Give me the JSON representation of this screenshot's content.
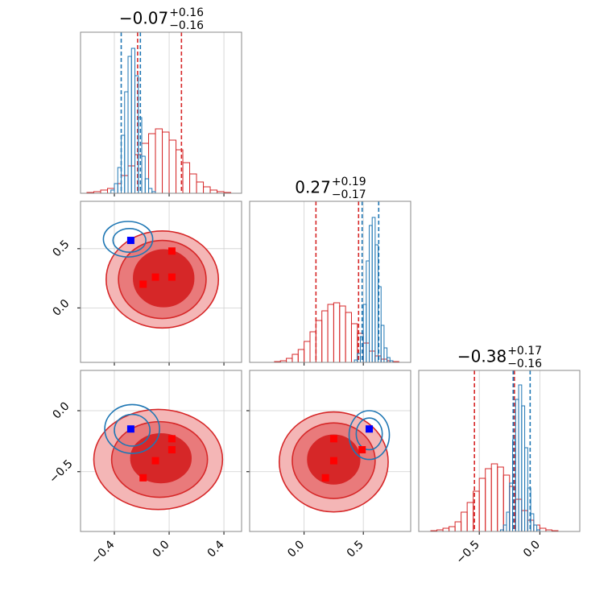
{
  "chart_data": [
    {
      "type": "histogram",
      "title": {
        "value": "−0.07",
        "upper": "+0.16",
        "lower": "−0.16"
      },
      "xlim": [
        -0.647,
        0.529
      ],
      "xticks": [
        {
          "value": -0.4,
          "label": "−0.4"
        },
        {
          "value": 0,
          "label": "0.0"
        },
        {
          "value": 0.4,
          "label": "0.4"
        }
      ],
      "ylim": [
        0,
        100
      ],
      "grid": true,
      "series": [
        {
          "color": "#d62728",
          "bins": [
            -0.65,
            -0.6,
            -0.55,
            -0.5,
            -0.45,
            -0.4,
            -0.35,
            -0.3,
            -0.25,
            -0.2,
            -0.15,
            -0.1,
            -0.05,
            0,
            0.05,
            0.1,
            0.15,
            0.2,
            0.25,
            0.3,
            0.35,
            0.4,
            0.45,
            0.5
          ],
          "values": [
            0,
            0.5,
            1,
            2,
            3,
            6,
            11,
            17,
            24,
            31,
            37,
            40,
            38,
            33,
            27,
            19,
            12,
            7,
            4,
            2,
            1,
            0.5,
            0
          ],
          "quantiles": [
            -0.23,
            0.09
          ]
        },
        {
          "color": "#1f77b4",
          "bins": [
            -0.45,
            -0.425,
            -0.4,
            -0.375,
            -0.35,
            -0.325,
            -0.3,
            -0.275,
            -0.25,
            -0.225,
            -0.2,
            -0.175,
            -0.15,
            -0.125,
            -0.1,
            -0.075,
            -0.05
          ],
          "values": [
            0,
            2,
            6,
            16,
            36,
            63,
            85,
            90,
            73,
            47,
            23,
            9,
            3,
            1,
            0,
            0
          ],
          "quantiles": [
            -0.35,
            -0.21
          ]
        }
      ]
    },
    {
      "type": "contour",
      "xlim": [
        -0.647,
        0.529
      ],
      "xticks": [
        {
          "value": -0.4,
          "label": "−0.4"
        },
        {
          "value": 0,
          "label": "0.0"
        },
        {
          "value": 0.4,
          "label": "0.4"
        }
      ],
      "ylim": [
        -0.46,
        0.9
      ],
      "yticks": [
        {
          "value": 0,
          "label": "0.0"
        },
        {
          "value": 0.5,
          "label": "0.5"
        }
      ],
      "grid": true,
      "series": [
        {
          "color": "#d62728",
          "level_fills": [
            "#f4b6b6",
            "#e97a7b",
            "#d62728"
          ],
          "levels": [
            {
              "cx": -0.05,
              "cy": 0.24,
              "rx": 0.41,
              "ry": 0.41
            },
            {
              "cx": -0.05,
              "cy": 0.24,
              "rx": 0.32,
              "ry": 0.33
            },
            {
              "cx": -0.04,
              "cy": 0.25,
              "rx": 0.22,
              "ry": 0.24
            }
          ]
        },
        {
          "color": "#1f77b4",
          "levels": [
            {
              "cx": -0.3,
              "cy": 0.58,
              "rx": 0.18,
              "ry": 0.15
            },
            {
              "cx": -0.29,
              "cy": 0.57,
              "rx": 0.12,
              "ry": 0.1
            }
          ]
        }
      ],
      "points": [
        {
          "color": "#ff0000",
          "x": [
            -0.19,
            -0.1,
            0.02,
            0.02
          ],
          "y": [
            0.2,
            0.26,
            0.26,
            0.48
          ]
        },
        {
          "color": "#0000ff",
          "x": [
            -0.28
          ],
          "y": [
            0.57
          ]
        }
      ]
    },
    {
      "type": "histogram",
      "title": {
        "value": "0.27",
        "upper": "+0.19",
        "lower": "−0.17"
      },
      "xlim": [
        -0.46,
        0.9
      ],
      "xticks": [
        {
          "value": 0,
          "label": "0.0"
        },
        {
          "value": 0.5,
          "label": "0.5"
        }
      ],
      "ylim": [
        0,
        100
      ],
      "grid": true,
      "series": [
        {
          "color": "#d62728",
          "bins": [
            -0.4,
            -0.35,
            -0.3,
            -0.25,
            -0.2,
            -0.15,
            -0.1,
            -0.05,
            0,
            0.05,
            0.1,
            0.15,
            0.2,
            0.25,
            0.3,
            0.35,
            0.4,
            0.45,
            0.5,
            0.55,
            0.6,
            0.65,
            0.7,
            0.75,
            0.8,
            0.85,
            0.9
          ],
          "values": [
            0,
            0,
            0,
            0.5,
            1,
            2.5,
            5,
            8,
            13,
            19,
            26,
            32,
            36,
            37,
            35,
            31,
            24,
            18,
            12,
            7,
            4,
            2,
            1,
            0.5,
            0,
            0
          ],
          "quantiles": [
            0.1,
            0.46
          ]
        },
        {
          "color": "#1f77b4",
          "bins": [
            0.35,
            0.375,
            0.4,
            0.425,
            0.45,
            0.475,
            0.5,
            0.525,
            0.55,
            0.575,
            0.6,
            0.625,
            0.65,
            0.675,
            0.7,
            0.725,
            0.75,
            0.775,
            0.8,
            0.825,
            0.85
          ],
          "values": [
            0,
            0,
            0,
            1.5,
            5.5,
            16,
            36,
            63,
            85,
            90,
            73,
            47,
            23,
            9,
            3,
            1,
            0,
            0,
            0,
            0
          ],
          "quantiles": [
            0.49,
            0.63
          ]
        }
      ]
    },
    {
      "type": "contour",
      "xlim": [
        -0.647,
        0.529
      ],
      "xticks": [
        {
          "value": -0.4,
          "label": "−0.4"
        },
        {
          "value": 0,
          "label": "0.0"
        },
        {
          "value": 0.4,
          "label": "0.4"
        }
      ],
      "ylim": [
        -0.99,
        0.33
      ],
      "yticks": [
        {
          "value": -0.5,
          "label": "−0.5"
        },
        {
          "value": 0,
          "label": "0.0"
        }
      ],
      "grid": true,
      "series": [
        {
          "color": "#d62728",
          "level_fills": [
            "#f4b6b6",
            "#e97a7b",
            "#d62728"
          ],
          "levels": [
            {
              "cx": -0.08,
              "cy": -0.4,
              "rx": 0.47,
              "ry": 0.41
            },
            {
              "cx": -0.07,
              "cy": -0.4,
              "rx": 0.35,
              "ry": 0.31
            },
            {
              "cx": -0.06,
              "cy": -0.39,
              "rx": 0.22,
              "ry": 0.2
            }
          ]
        },
        {
          "color": "#1f77b4",
          "levels": [
            {
              "cx": -0.27,
              "cy": -0.15,
              "rx": 0.2,
              "ry": 0.2
            },
            {
              "cx": -0.27,
              "cy": -0.16,
              "rx": 0.13,
              "ry": 0.13
            }
          ]
        }
      ],
      "points": [
        {
          "color": "#ff0000",
          "x": [
            -0.19,
            -0.1,
            0.02,
            0.02
          ],
          "y": [
            -0.55,
            -0.41,
            -0.23,
            -0.32
          ]
        },
        {
          "color": "#0000ff",
          "x": [
            -0.28
          ],
          "y": [
            -0.15
          ]
        }
      ]
    },
    {
      "type": "contour",
      "xlim": [
        -0.46,
        0.9
      ],
      "xticks": [
        {
          "value": 0,
          "label": "0.0"
        },
        {
          "value": 0.5,
          "label": "0.5"
        }
      ],
      "ylim": [
        -0.99,
        0.33
      ],
      "yticks": [
        {
          "value": -0.5,
          "label": "−0.5"
        },
        {
          "value": 0,
          "label": "0.0"
        }
      ],
      "grid": true,
      "series": [
        {
          "color": "#d62728",
          "level_fills": [
            "#f4b6b6",
            "#e97a7b",
            "#d62728"
          ],
          "levels": [
            {
              "cx": 0.25,
              "cy": -0.42,
              "rx": 0.46,
              "ry": 0.41
            },
            {
              "cx": 0.25,
              "cy": -0.41,
              "rx": 0.35,
              "ry": 0.31
            },
            {
              "cx": 0.25,
              "cy": -0.4,
              "rx": 0.22,
              "ry": 0.2
            }
          ]
        },
        {
          "color": "#1f77b4",
          "levels": [
            {
              "cx": 0.55,
              "cy": -0.2,
              "rx": 0.17,
              "ry": 0.2
            },
            {
              "cx": 0.55,
              "cy": -0.19,
              "rx": 0.11,
              "ry": 0.13
            }
          ]
        }
      ],
      "points": [
        {
          "color": "#ff0000",
          "x": [
            0.18,
            0.25,
            0.25,
            0.49
          ],
          "y": [
            -0.55,
            -0.41,
            -0.23,
            -0.32
          ]
        },
        {
          "color": "#0000ff",
          "x": [
            0.55
          ],
          "y": [
            -0.15
          ]
        }
      ]
    },
    {
      "type": "histogram",
      "title": {
        "value": "−0.38",
        "upper": "+0.17",
        "lower": "−0.16"
      },
      "xlim": [
        -1.0,
        0.33
      ],
      "xticks": [
        {
          "value": -0.5,
          "label": "−0.5"
        },
        {
          "value": 0,
          "label": "0.0"
        }
      ],
      "ylim": [
        0,
        100
      ],
      "grid": true,
      "series": [
        {
          "color": "#d62728",
          "bins": [
            -0.95,
            -0.9,
            -0.85,
            -0.8,
            -0.75,
            -0.7,
            -0.65,
            -0.6,
            -0.55,
            -0.5,
            -0.45,
            -0.4,
            -0.35,
            -0.3,
            -0.25,
            -0.2,
            -0.15,
            -0.1,
            -0.05,
            0,
            0.05,
            0.1,
            0.15,
            0.2
          ],
          "values": [
            0,
            0.5,
            1,
            2,
            3,
            6,
            12,
            18,
            25,
            33,
            39,
            42,
            40,
            35,
            28,
            20,
            13,
            7,
            4,
            2,
            1,
            0.5,
            0
          ],
          "quantiles": [
            -0.54,
            -0.21
          ]
        },
        {
          "color": "#1f77b4",
          "bins": [
            -0.35,
            -0.325,
            -0.3,
            -0.275,
            -0.25,
            -0.225,
            -0.2,
            -0.175,
            -0.15,
            -0.125,
            -0.1,
            -0.075,
            -0.05,
            -0.025,
            0,
            0.025,
            0.05,
            0.075,
            0.1,
            0.125,
            0.15
          ],
          "values": [
            0,
            1,
            4,
            12,
            30,
            57,
            82,
            91,
            78,
            52,
            27,
            11,
            4,
            1,
            0,
            0,
            0,
            0,
            0,
            0
          ],
          "quantiles": [
            -0.22,
            -0.08
          ]
        }
      ]
    }
  ]
}
